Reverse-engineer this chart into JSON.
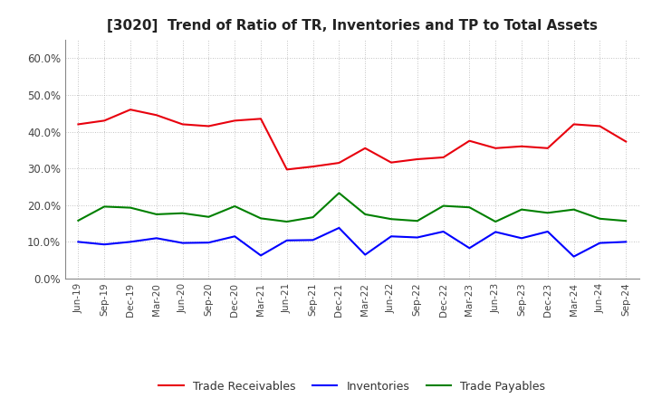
{
  "title": "[3020]  Trend of Ratio of TR, Inventories and TP to Total Assets",
  "x_labels": [
    "Jun-19",
    "Sep-19",
    "Dec-19",
    "Mar-20",
    "Jun-20",
    "Sep-20",
    "Dec-20",
    "Mar-21",
    "Jun-21",
    "Sep-21",
    "Dec-21",
    "Mar-22",
    "Jun-22",
    "Sep-22",
    "Dec-22",
    "Mar-23",
    "Jun-23",
    "Sep-23",
    "Dec-23",
    "Mar-24",
    "Jun-24",
    "Sep-24"
  ],
  "trade_receivables": [
    0.42,
    0.43,
    0.46,
    0.445,
    0.42,
    0.415,
    0.43,
    0.435,
    0.297,
    0.305,
    0.315,
    0.355,
    0.316,
    0.325,
    0.33,
    0.375,
    0.355,
    0.36,
    0.355,
    0.42,
    0.415,
    0.373
  ],
  "inventories": [
    0.1,
    0.093,
    0.1,
    0.11,
    0.097,
    0.098,
    0.115,
    0.063,
    0.104,
    0.105,
    0.138,
    0.065,
    0.115,
    0.112,
    0.128,
    0.083,
    0.127,
    0.11,
    0.128,
    0.06,
    0.097,
    0.1
  ],
  "trade_payables": [
    0.158,
    0.196,
    0.193,
    0.175,
    0.178,
    0.168,
    0.197,
    0.164,
    0.155,
    0.167,
    0.233,
    0.175,
    0.162,
    0.157,
    0.198,
    0.194,
    0.155,
    0.188,
    0.179,
    0.188,
    0.163,
    0.157
  ],
  "tr_color": "#e8000d",
  "inv_color": "#0000ff",
  "tp_color": "#008000",
  "ylim": [
    0.0,
    0.65
  ],
  "yticks": [
    0.0,
    0.1,
    0.2,
    0.3,
    0.4,
    0.5,
    0.6
  ],
  "legend_labels": [
    "Trade Receivables",
    "Inventories",
    "Trade Payables"
  ],
  "bg_color": "#ffffff",
  "grid_color": "#b0b0b0",
  "line_width": 1.5
}
